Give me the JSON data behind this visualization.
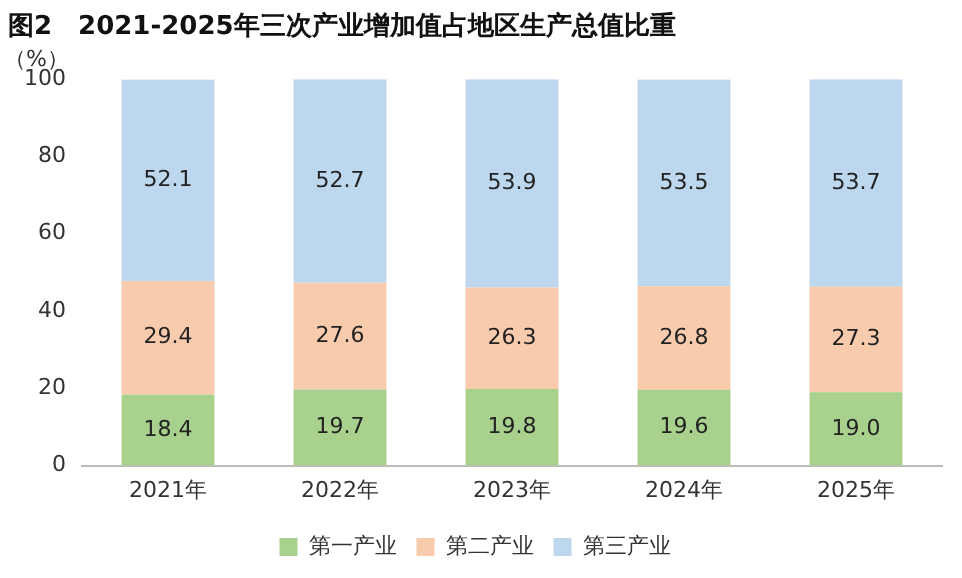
{
  "chart_data": {
    "type": "bar",
    "title": "图2　2021-2025年三次产业增加值占地区生产总值比重",
    "ylabel": "（%）",
    "categories": [
      "2021年",
      "2022年",
      "2023年",
      "2024年",
      "2025年"
    ],
    "stacked": true,
    "legend": "bottom",
    "grid": false,
    "ylim": [
      0,
      100
    ],
    "yticks": [
      0,
      20,
      40,
      60,
      80,
      100
    ],
    "series": [
      {
        "name": "第一产业",
        "color": "#a9d18e",
        "values": [
          18.4,
          19.7,
          19.8,
          19.6,
          19.0
        ],
        "value_labels": [
          "18.4",
          "19.7",
          "19.8",
          "19.6",
          "19.0"
        ]
      },
      {
        "name": "第二产业",
        "color": "#f8cbad",
        "values": [
          29.4,
          27.6,
          26.3,
          26.8,
          27.3
        ],
        "value_labels": [
          "29.4",
          "27.6",
          "26.3",
          "26.8",
          "27.3"
        ]
      },
      {
        "name": "第三产业",
        "color": "#bdd7ee",
        "values": [
          52.1,
          52.7,
          53.9,
          53.5,
          53.7
        ],
        "value_labels": [
          "52.1",
          "52.7",
          "53.9",
          "53.5",
          "53.7"
        ]
      }
    ]
  }
}
